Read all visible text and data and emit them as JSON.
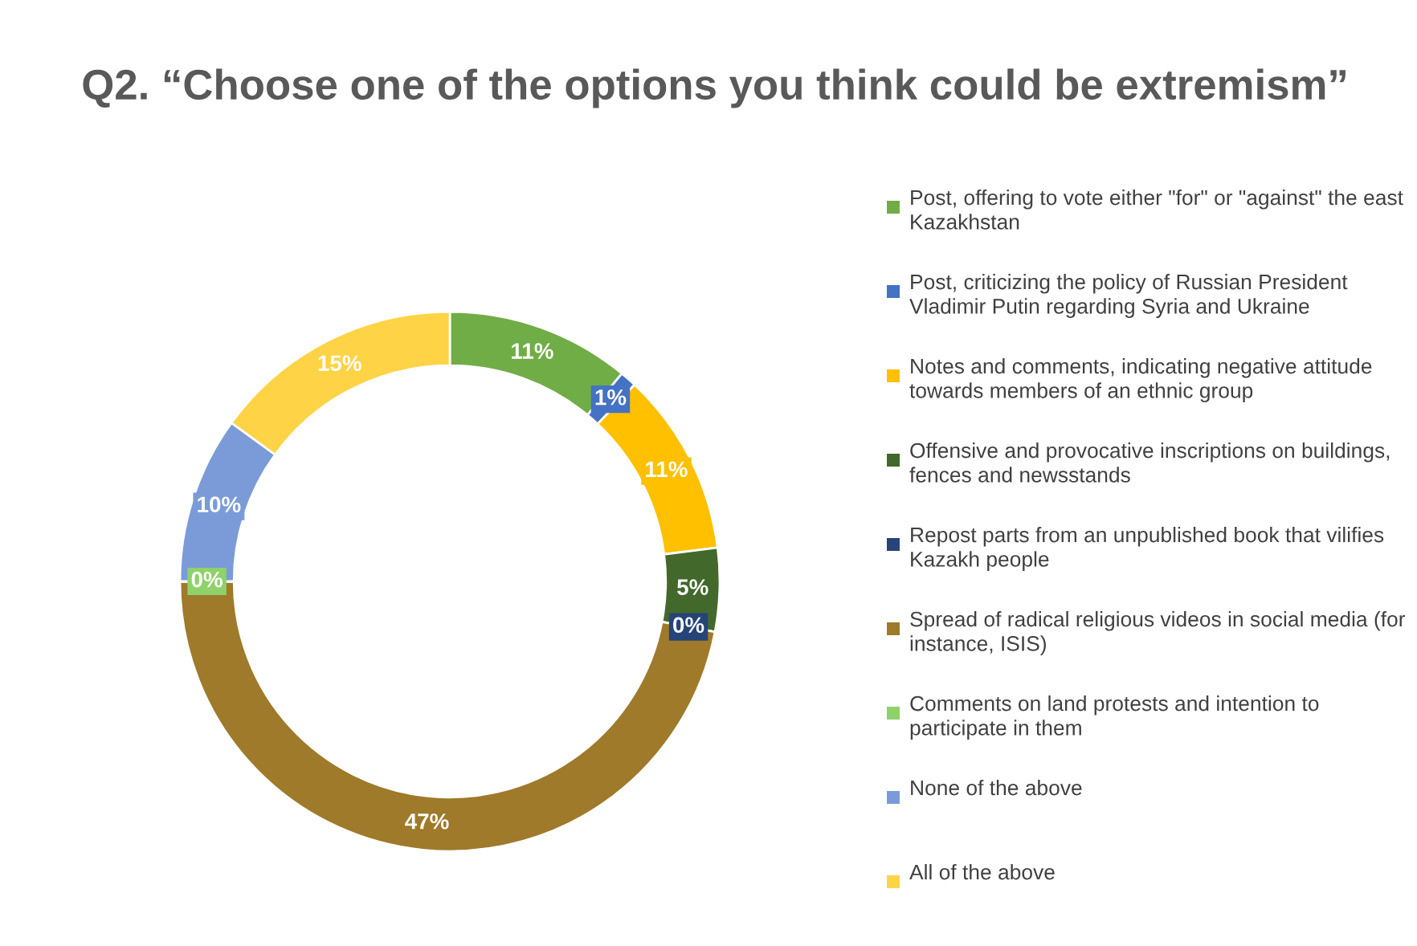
{
  "chart_data": {
    "type": "donut",
    "title": "Q2. “Choose one of the options you think could be extremism”",
    "categories": [
      "Post, offering to vote either \"for\" or \"against\" the east Kazakhstan",
      "Post, criticizing the policy of Russian President Vladimir Putin regarding Syria and Ukraine",
      "Notes and comments, indicating negative attitude towards members of an ethnic group",
      "Offensive and provocative inscriptions on buildings, fences and newsstands",
      "Repost parts from an unpublished book that vilifies Kazakh people",
      "Spread of radical religious videos in social media (for instance, ISIS)",
      "Comments on land protests and intention to participate in them",
      "None of the above",
      "All of the above"
    ],
    "values": [
      11,
      1,
      11,
      5,
      0,
      47,
      0,
      10,
      15
    ],
    "value_labels": [
      "11%",
      "1%",
      "11%",
      "5%",
      "0%",
      "47%",
      "0%",
      "10%",
      "15%"
    ],
    "colors": [
      "#70ad47",
      "#4472c4",
      "#ffc000",
      "#43682b",
      "#264478",
      "#9e7a2a",
      "#8fd16a",
      "#7b9bd8",
      "#ffd346"
    ],
    "legend": "right"
  }
}
